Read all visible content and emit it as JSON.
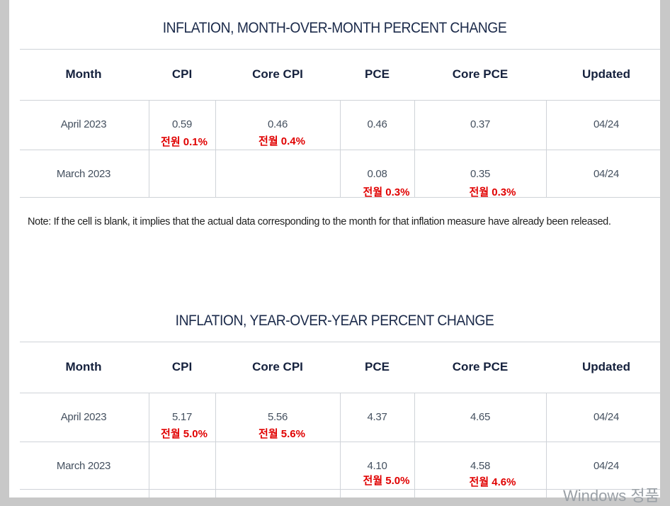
{
  "mom": {
    "title": "INFLATION, MONTH-OVER-MONTH PERCENT CHANGE",
    "headers": [
      "Month",
      "CPI",
      "Core CPI",
      "PCE",
      "Core PCE",
      "Updated"
    ],
    "rows": [
      {
        "month": "April 2023",
        "cpi": "0.59",
        "core_cpi": "0.46",
        "pce": "0.46",
        "core_pce": "0.37",
        "updated": "04/24"
      },
      {
        "month": "March 2023",
        "cpi": "",
        "core_cpi": "",
        "pce": "0.08",
        "core_pce": "0.35",
        "updated": "04/24"
      }
    ],
    "annotations": [
      "전원 0.1%",
      "전월 0.4%",
      "전월 0.3%",
      "전월 0.3%"
    ]
  },
  "note": "Note: If the cell is blank, it implies that the actual data corresponding to the month for that inflation measure have already been released.",
  "yoy": {
    "title": "INFLATION, YEAR-OVER-YEAR PERCENT CHANGE",
    "headers": [
      "Month",
      "CPI",
      "Core CPI",
      "PCE",
      "Core PCE",
      "Updated"
    ],
    "rows": [
      {
        "month": "April 2023",
        "cpi": "5.17",
        "core_cpi": "5.56",
        "pce": "4.37",
        "core_pce": "4.65",
        "updated": "04/24"
      },
      {
        "month": "March 2023",
        "cpi": "",
        "core_cpi": "",
        "pce": "4.10",
        "core_pce": "4.58",
        "updated": "04/24"
      }
    ],
    "annotations": [
      "전월 5.0%",
      "전월 5.6%",
      "전월 5.0%",
      "전월 4.6%"
    ]
  },
  "watermark": "Windows 정품"
}
